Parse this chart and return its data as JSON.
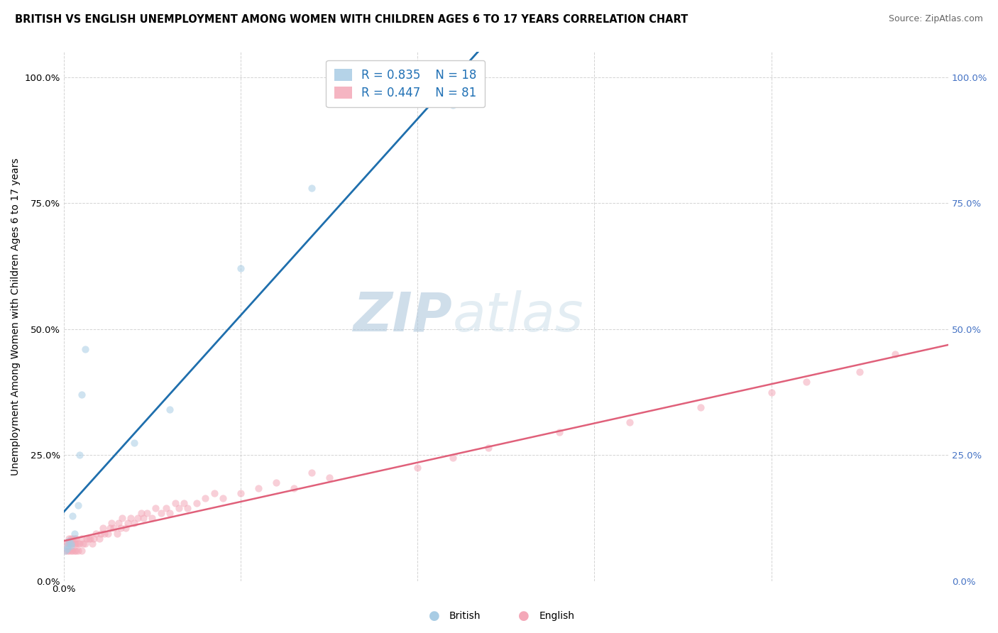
{
  "title": "BRITISH VS ENGLISH UNEMPLOYMENT AMONG WOMEN WITH CHILDREN AGES 6 TO 17 YEARS CORRELATION CHART",
  "source": "Source: ZipAtlas.com",
  "ylabel": "Unemployment Among Women with Children Ages 6 to 17 years",
  "watermark_zip": "ZIP",
  "watermark_atlas": "atlas",
  "xlim": [
    0.0,
    0.5
  ],
  "ylim": [
    0.0,
    1.05
  ],
  "xticks": [
    0.0,
    0.1,
    0.2,
    0.3,
    0.4,
    0.5
  ],
  "yticks_left": [
    0.0,
    0.25,
    0.5,
    0.75,
    1.0
  ],
  "yticks_right": [
    0.0,
    0.25,
    0.5,
    0.75,
    1.0
  ],
  "xticklabels": [
    "0.0%",
    "",
    "",
    "",
    "",
    ""
  ],
  "yticklabels_left": [
    "0.0%",
    "25.0%",
    "50.0%",
    "75.0%",
    "100.0%"
  ],
  "yticklabels_right": [
    "0.0%",
    "25.0%",
    "50.0%",
    "75.0%",
    "100.0%"
  ],
  "british_color": "#a8cce4",
  "english_color": "#f4a8b8",
  "british_line_color": "#1f6fad",
  "english_line_color": "#e0607a",
  "R_british": 0.835,
  "N_british": 18,
  "R_english": 0.447,
  "N_english": 81,
  "british_x": [
    0.001,
    0.002,
    0.002,
    0.003,
    0.004,
    0.004,
    0.005,
    0.006,
    0.008,
    0.009,
    0.01,
    0.012,
    0.04,
    0.06,
    0.1,
    0.14,
    0.22,
    0.225
  ],
  "british_y": [
    0.06,
    0.065,
    0.07,
    0.08,
    0.07,
    0.075,
    0.13,
    0.095,
    0.15,
    0.25,
    0.37,
    0.46,
    0.275,
    0.34,
    0.62,
    0.78,
    0.945,
    0.955
  ],
  "english_x": [
    0.001,
    0.001,
    0.002,
    0.002,
    0.003,
    0.003,
    0.003,
    0.004,
    0.004,
    0.004,
    0.005,
    0.005,
    0.005,
    0.006,
    0.006,
    0.006,
    0.007,
    0.007,
    0.007,
    0.008,
    0.008,
    0.009,
    0.01,
    0.01,
    0.011,
    0.012,
    0.013,
    0.014,
    0.015,
    0.016,
    0.017,
    0.018,
    0.02,
    0.021,
    0.022,
    0.023,
    0.025,
    0.026,
    0.027,
    0.028,
    0.03,
    0.031,
    0.032,
    0.033,
    0.035,
    0.036,
    0.038,
    0.04,
    0.042,
    0.044,
    0.045,
    0.047,
    0.05,
    0.052,
    0.055,
    0.058,
    0.06,
    0.063,
    0.065,
    0.068,
    0.07,
    0.075,
    0.08,
    0.085,
    0.09,
    0.1,
    0.11,
    0.12,
    0.13,
    0.14,
    0.15,
    0.2,
    0.22,
    0.24,
    0.28,
    0.32,
    0.36,
    0.4,
    0.42,
    0.45,
    0.47
  ],
  "english_y": [
    0.06,
    0.075,
    0.06,
    0.075,
    0.06,
    0.075,
    0.085,
    0.06,
    0.075,
    0.085,
    0.06,
    0.075,
    0.085,
    0.06,
    0.075,
    0.085,
    0.06,
    0.075,
    0.085,
    0.06,
    0.075,
    0.075,
    0.06,
    0.085,
    0.075,
    0.075,
    0.085,
    0.085,
    0.085,
    0.075,
    0.085,
    0.095,
    0.085,
    0.095,
    0.105,
    0.095,
    0.095,
    0.105,
    0.115,
    0.105,
    0.095,
    0.115,
    0.105,
    0.125,
    0.105,
    0.115,
    0.125,
    0.115,
    0.125,
    0.135,
    0.125,
    0.135,
    0.125,
    0.145,
    0.135,
    0.145,
    0.135,
    0.155,
    0.145,
    0.155,
    0.145,
    0.155,
    0.165,
    0.175,
    0.165,
    0.175,
    0.185,
    0.195,
    0.185,
    0.215,
    0.205,
    0.225,
    0.245,
    0.265,
    0.295,
    0.315,
    0.345,
    0.375,
    0.395,
    0.415,
    0.45
  ],
  "marker_size": 55,
  "alpha": 0.55,
  "title_fontsize": 10.5,
  "axis_label_fontsize": 10,
  "tick_fontsize": 9.5,
  "legend_fontsize": 12,
  "source_fontsize": 9
}
